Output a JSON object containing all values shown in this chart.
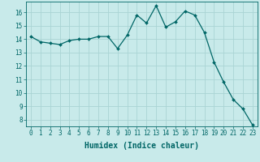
{
  "x": [
    0,
    1,
    2,
    3,
    4,
    5,
    6,
    7,
    8,
    9,
    10,
    11,
    12,
    13,
    14,
    15,
    16,
    17,
    18,
    19,
    20,
    21,
    22,
    23
  ],
  "y": [
    14.2,
    13.8,
    13.7,
    13.6,
    13.9,
    14.0,
    14.0,
    14.2,
    14.2,
    13.3,
    14.3,
    15.8,
    15.2,
    16.5,
    14.9,
    15.3,
    16.1,
    15.8,
    14.5,
    12.3,
    10.8,
    9.5,
    8.8,
    7.6
  ],
  "line_color": "#006666",
  "marker": "D",
  "marker_size": 2.0,
  "bg_color": "#c8eaea",
  "grid_color": "#aad4d4",
  "axis_color": "#006666",
  "xlabel": "Humidex (Indice chaleur)",
  "xlim": [
    -0.5,
    23.5
  ],
  "ylim": [
    7.5,
    16.8
  ],
  "yticks": [
    8,
    9,
    10,
    11,
    12,
    13,
    14,
    15,
    16
  ],
  "xticks": [
    0,
    1,
    2,
    3,
    4,
    5,
    6,
    7,
    8,
    9,
    10,
    11,
    12,
    13,
    14,
    15,
    16,
    17,
    18,
    19,
    20,
    21,
    22,
    23
  ],
  "tick_font_size": 5.5,
  "xlabel_font_size": 7.0
}
